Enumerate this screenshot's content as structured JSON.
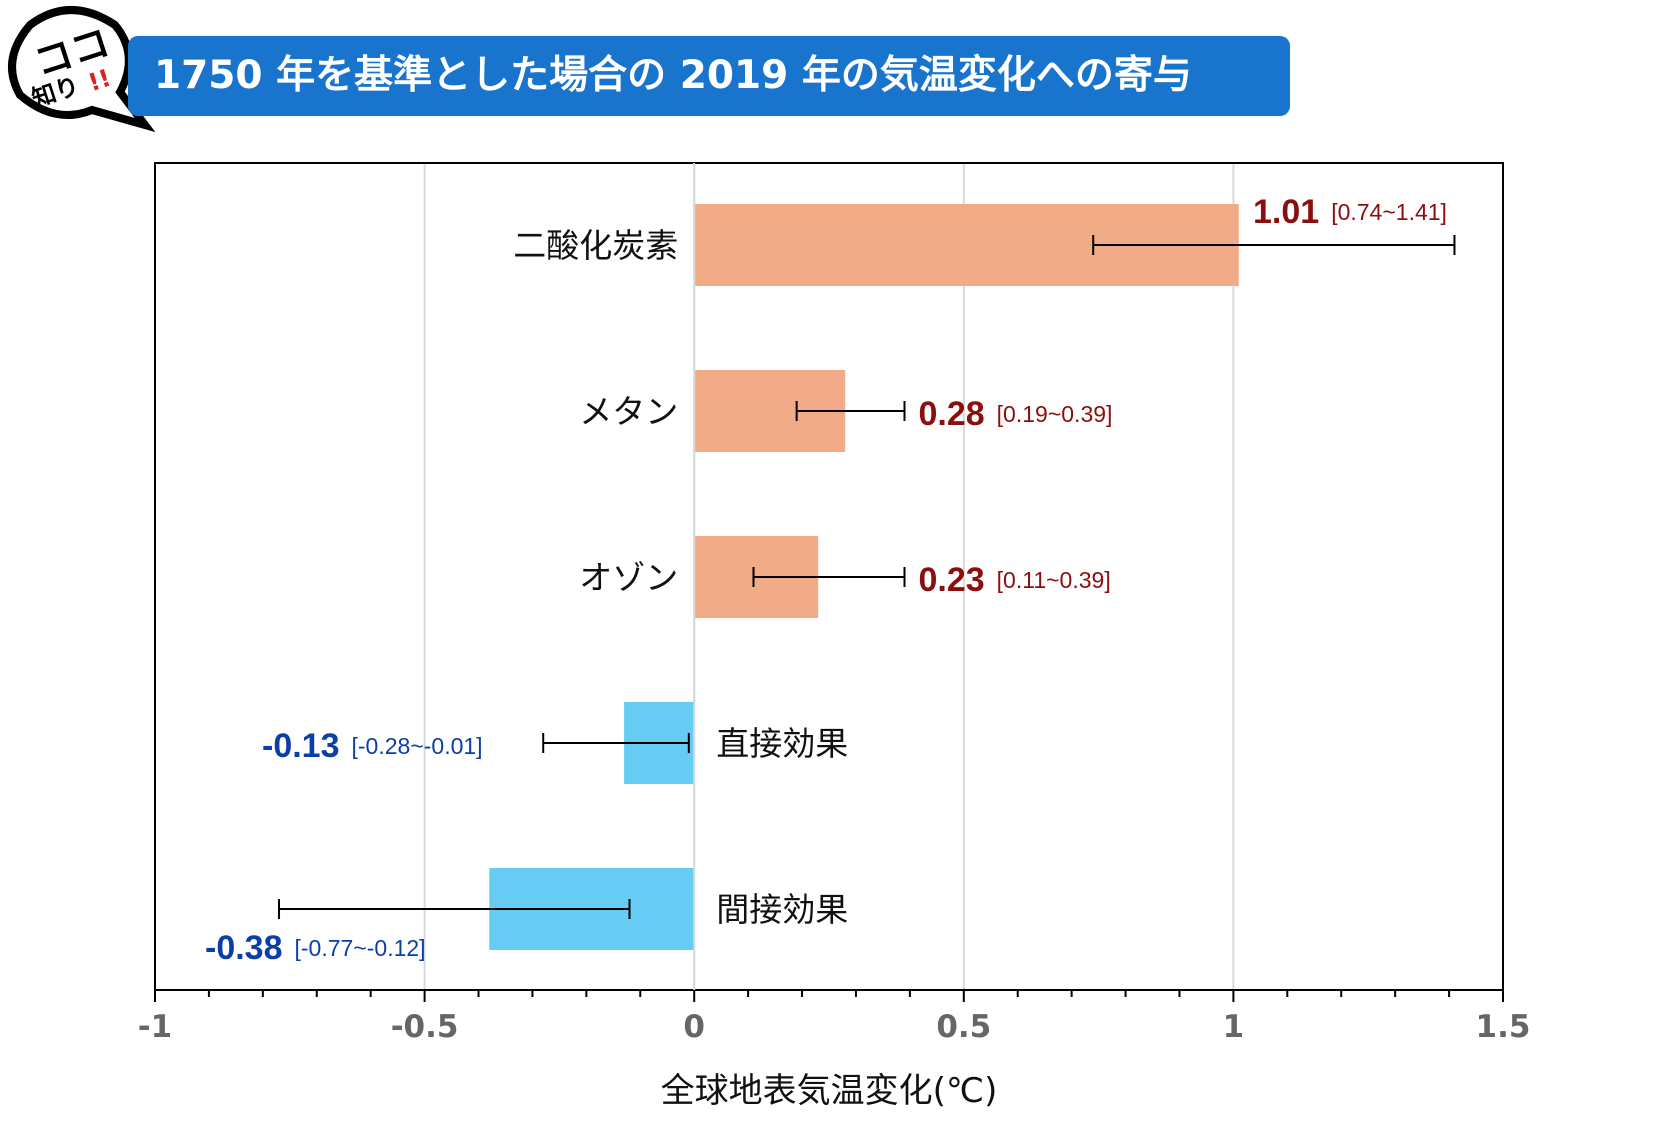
{
  "badge": {
    "line1": "ココ",
    "line2": "知り",
    "exclaim": "!!"
  },
  "header": {
    "title": "1750 年を基準とした場合の 2019 年の気温変化への寄与"
  },
  "chart_data": {
    "type": "bar",
    "orientation": "horizontal",
    "categories": [
      "二酸化炭素",
      "メタン",
      "オゾン",
      "直接効果",
      "間接効果"
    ],
    "values": [
      1.01,
      0.28,
      0.23,
      -0.13,
      -0.38
    ],
    "value_labels": [
      "1.01",
      "0.28",
      "0.23",
      "-0.13",
      "-0.38"
    ],
    "ranges": [
      [
        0.74,
        1.41
      ],
      [
        0.19,
        0.39
      ],
      [
        0.11,
        0.39
      ],
      [
        -0.28,
        -0.01
      ],
      [
        -0.77,
        -0.12
      ]
    ],
    "range_labels": [
      "[0.74~1.41]",
      "[0.19~0.39]",
      "[0.11~0.39]",
      "[-0.28~-0.01]",
      "[-0.77~-0.12]"
    ],
    "xlabel": "全球地表気温変化(℃)",
    "xlim": [
      -1,
      1.5
    ],
    "xticks": [
      -1,
      -0.5,
      0,
      0.5,
      1,
      1.5
    ],
    "xtick_labels": [
      "-1",
      "-0.5",
      "0",
      "0.5",
      "1",
      "1.5"
    ],
    "minor_tick_step": 0.1,
    "grid": "vertical",
    "colors": {
      "positive_bar": "#F2AB87",
      "negative_bar": "#66CCF3",
      "positive_text": "#8B0F0F",
      "negative_text": "#0A3FA8",
      "grid": "#D9D9D9",
      "header_bg": "#1874CD"
    }
  }
}
